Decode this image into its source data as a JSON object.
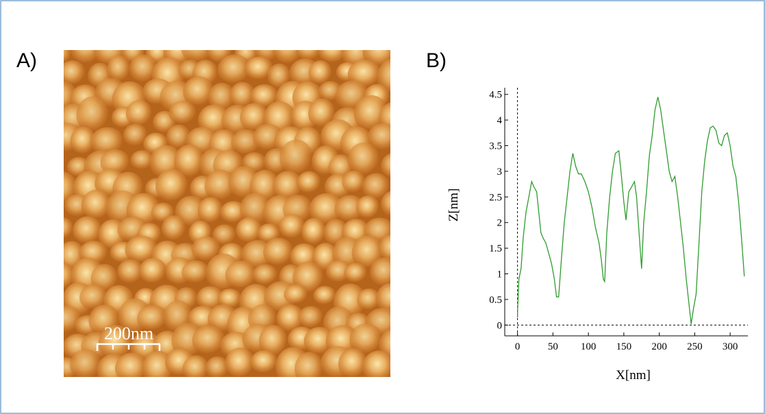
{
  "panels": {
    "a": {
      "label": "A)",
      "scale_bar": "200nm"
    },
    "b": {
      "label": "B)"
    }
  },
  "chart_data": {
    "type": "line",
    "xlabel": "X[nm]",
    "ylabel": "Z[nm]",
    "color": "#2e9b2e",
    "x": [
      0,
      0.2,
      2,
      5,
      8,
      12,
      16,
      20,
      23,
      27,
      30,
      33,
      36,
      40,
      44,
      48,
      52,
      55,
      58,
      62,
      66,
      70,
      74,
      78,
      82,
      86,
      90,
      95,
      100,
      105,
      110,
      115,
      118,
      121,
      123,
      126,
      130,
      134,
      138,
      143,
      146,
      150,
      153,
      157,
      161,
      165,
      168,
      171,
      175,
      178,
      182,
      186,
      190,
      194,
      198,
      202,
      206,
      210,
      214,
      218,
      222,
      226,
      230,
      234,
      238,
      242,
      245,
      248,
      252,
      256,
      260,
      264,
      268,
      272,
      276,
      280,
      284,
      288,
      292,
      296,
      300,
      304,
      308,
      312,
      316,
      320
    ],
    "values": [
      0.15,
      0.3,
      0.9,
      1.1,
      1.7,
      2.2,
      2.5,
      2.8,
      2.7,
      2.6,
      2.2,
      1.8,
      1.7,
      1.6,
      1.4,
      1.2,
      0.9,
      0.55,
      0.55,
      1.3,
      2.0,
      2.5,
      3.0,
      3.35,
      3.1,
      2.95,
      2.95,
      2.8,
      2.6,
      2.3,
      1.9,
      1.6,
      1.3,
      0.9,
      0.85,
      1.8,
      2.5,
      3.0,
      3.35,
      3.4,
      3.0,
      2.4,
      2.05,
      2.6,
      2.7,
      2.8,
      2.5,
      1.9,
      1.1,
      2.0,
      2.6,
      3.3,
      3.7,
      4.2,
      4.45,
      4.2,
      3.8,
      3.4,
      3.0,
      2.8,
      2.9,
      2.5,
      2.0,
      1.5,
      0.9,
      0.4,
      0.02,
      0.3,
      0.6,
      1.6,
      2.6,
      3.2,
      3.6,
      3.85,
      3.88,
      3.8,
      3.55,
      3.5,
      3.7,
      3.75,
      3.5,
      3.1,
      2.9,
      2.4,
      1.7,
      0.95
    ],
    "xlim": [
      -18,
      325
    ],
    "ylim": [
      -0.21,
      4.63
    ],
    "xticks": [
      0,
      50,
      100,
      150,
      200,
      250,
      300
    ],
    "yticks": [
      0,
      0.5,
      1,
      1.5,
      2,
      2.5,
      3,
      3.5,
      4,
      4.5
    ]
  }
}
